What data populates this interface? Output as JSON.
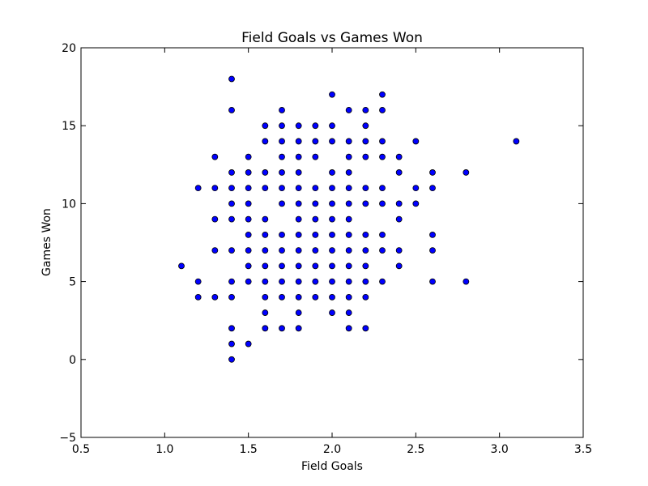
{
  "chart_data": {
    "type": "scatter",
    "title": "Field Goals vs Games Won",
    "xlabel": "Field Goals",
    "ylabel": "Games Won",
    "xlim": [
      0.5,
      3.5
    ],
    "ylim": [
      -5,
      20
    ],
    "xticks": [
      0.5,
      1.0,
      1.5,
      2.0,
      2.5,
      3.0,
      3.5
    ],
    "yticks": [
      -5,
      0,
      5,
      10,
      15,
      20
    ],
    "xtick_labels": [
      "0.5",
      "1.0",
      "1.5",
      "2.0",
      "2.5",
      "3.0",
      "3.5"
    ],
    "ytick_labels": [
      "−5",
      "0",
      "5",
      "10",
      "15",
      "20"
    ],
    "grid": false,
    "marker_color": "#0000ff",
    "marker_edge_color": "#000000",
    "points": [
      [
        1.1,
        6
      ],
      [
        1.2,
        11
      ],
      [
        1.2,
        5
      ],
      [
        1.2,
        4
      ],
      [
        1.3,
        13
      ],
      [
        1.3,
        11
      ],
      [
        1.3,
        9
      ],
      [
        1.3,
        7
      ],
      [
        1.3,
        4
      ],
      [
        1.4,
        18
      ],
      [
        1.4,
        16
      ],
      [
        1.4,
        12
      ],
      [
        1.4,
        11
      ],
      [
        1.4,
        10
      ],
      [
        1.4,
        9
      ],
      [
        1.4,
        7
      ],
      [
        1.4,
        5
      ],
      [
        1.4,
        4
      ],
      [
        1.4,
        2
      ],
      [
        1.4,
        1
      ],
      [
        1.4,
        0
      ],
      [
        1.5,
        13
      ],
      [
        1.5,
        12
      ],
      [
        1.5,
        11
      ],
      [
        1.5,
        10
      ],
      [
        1.5,
        9
      ],
      [
        1.5,
        8
      ],
      [
        1.5,
        7
      ],
      [
        1.5,
        6
      ],
      [
        1.5,
        5
      ],
      [
        1.5,
        1
      ],
      [
        1.6,
        15
      ],
      [
        1.6,
        14
      ],
      [
        1.6,
        12
      ],
      [
        1.6,
        11
      ],
      [
        1.6,
        9
      ],
      [
        1.6,
        8
      ],
      [
        1.6,
        7
      ],
      [
        1.6,
        6
      ],
      [
        1.6,
        5
      ],
      [
        1.6,
        4
      ],
      [
        1.6,
        3
      ],
      [
        1.6,
        2
      ],
      [
        1.7,
        16
      ],
      [
        1.7,
        15
      ],
      [
        1.7,
        14
      ],
      [
        1.7,
        13
      ],
      [
        1.7,
        12
      ],
      [
        1.7,
        11
      ],
      [
        1.7,
        10
      ],
      [
        1.7,
        8
      ],
      [
        1.7,
        7
      ],
      [
        1.7,
        6
      ],
      [
        1.7,
        5
      ],
      [
        1.7,
        4
      ],
      [
        1.7,
        2
      ],
      [
        1.8,
        15
      ],
      [
        1.8,
        14
      ],
      [
        1.8,
        13
      ],
      [
        1.8,
        12
      ],
      [
        1.8,
        11
      ],
      [
        1.8,
        10
      ],
      [
        1.8,
        9
      ],
      [
        1.8,
        8
      ],
      [
        1.8,
        7
      ],
      [
        1.8,
        6
      ],
      [
        1.8,
        5
      ],
      [
        1.8,
        4
      ],
      [
        1.8,
        3
      ],
      [
        1.8,
        2
      ],
      [
        1.9,
        15
      ],
      [
        1.9,
        14
      ],
      [
        1.9,
        13
      ],
      [
        1.9,
        11
      ],
      [
        1.9,
        10
      ],
      [
        1.9,
        9
      ],
      [
        1.9,
        8
      ],
      [
        1.9,
        7
      ],
      [
        1.9,
        6
      ],
      [
        1.9,
        5
      ],
      [
        1.9,
        4
      ],
      [
        2.0,
        17
      ],
      [
        2.0,
        15
      ],
      [
        2.0,
        14
      ],
      [
        2.0,
        12
      ],
      [
        2.0,
        11
      ],
      [
        2.0,
        10
      ],
      [
        2.0,
        9
      ],
      [
        2.0,
        8
      ],
      [
        2.0,
        7
      ],
      [
        2.0,
        6
      ],
      [
        2.0,
        5
      ],
      [
        2.0,
        4
      ],
      [
        2.0,
        3
      ],
      [
        2.1,
        16
      ],
      [
        2.1,
        14
      ],
      [
        2.1,
        13
      ],
      [
        2.1,
        12
      ],
      [
        2.1,
        11
      ],
      [
        2.1,
        10
      ],
      [
        2.1,
        9
      ],
      [
        2.1,
        8
      ],
      [
        2.1,
        7
      ],
      [
        2.1,
        6
      ],
      [
        2.1,
        5
      ],
      [
        2.1,
        4
      ],
      [
        2.1,
        3
      ],
      [
        2.1,
        2
      ],
      [
        2.2,
        16
      ],
      [
        2.2,
        15
      ],
      [
        2.2,
        14
      ],
      [
        2.2,
        13
      ],
      [
        2.2,
        11
      ],
      [
        2.2,
        10
      ],
      [
        2.2,
        8
      ],
      [
        2.2,
        7
      ],
      [
        2.2,
        6
      ],
      [
        2.2,
        5
      ],
      [
        2.2,
        4
      ],
      [
        2.2,
        2
      ],
      [
        2.3,
        17
      ],
      [
        2.3,
        16
      ],
      [
        2.3,
        14
      ],
      [
        2.3,
        13
      ],
      [
        2.3,
        11
      ],
      [
        2.3,
        10
      ],
      [
        2.3,
        8
      ],
      [
        2.3,
        7
      ],
      [
        2.3,
        5
      ],
      [
        2.4,
        13
      ],
      [
        2.4,
        12
      ],
      [
        2.4,
        10
      ],
      [
        2.4,
        9
      ],
      [
        2.4,
        7
      ],
      [
        2.4,
        6
      ],
      [
        2.5,
        14
      ],
      [
        2.5,
        11
      ],
      [
        2.5,
        10
      ],
      [
        2.6,
        12
      ],
      [
        2.6,
        11
      ],
      [
        2.6,
        8
      ],
      [
        2.6,
        7
      ],
      [
        2.6,
        5
      ],
      [
        2.8,
        12
      ],
      [
        2.8,
        5
      ],
      [
        3.1,
        14
      ]
    ]
  }
}
